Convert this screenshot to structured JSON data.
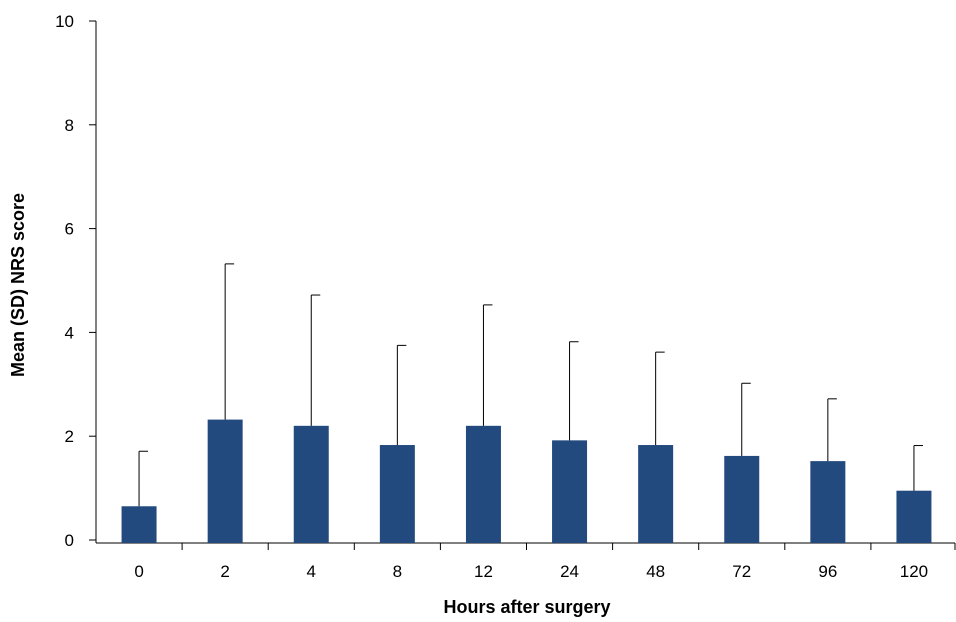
{
  "chart_data": {
    "type": "bar",
    "categories": [
      "0",
      "2",
      "4",
      "8",
      "12",
      "24",
      "48",
      "72",
      "96",
      "120"
    ],
    "values": [
      0.65,
      2.32,
      2.2,
      1.83,
      2.2,
      1.92,
      1.83,
      1.62,
      1.52,
      0.95
    ],
    "error_upper": [
      1.71,
      5.32,
      4.72,
      3.75,
      4.53,
      3.82,
      3.62,
      3.02,
      2.72,
      1.82
    ],
    "xlabel": "Hours after surgery",
    "ylabel": "Mean (SD) NRS score",
    "ylim": [
      0,
      10
    ],
    "yticks": [
      "0",
      "2",
      "4",
      "6",
      "8",
      "10"
    ],
    "bar_color": "#234a7e",
    "grid": false,
    "legend": "none"
  }
}
